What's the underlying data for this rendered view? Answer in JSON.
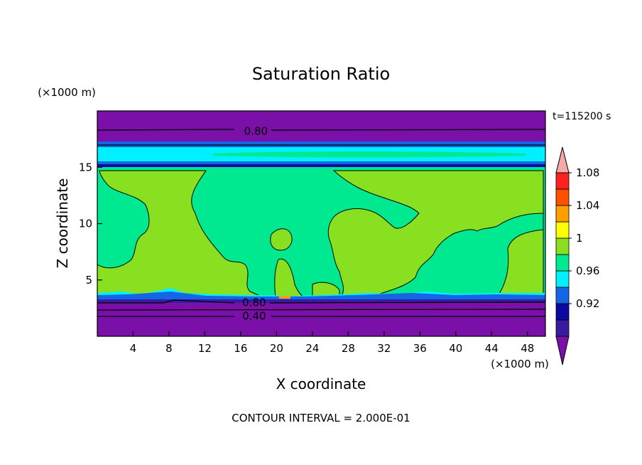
{
  "chart_data": {
    "type": "contour",
    "title": "Saturation Ratio",
    "xlabel": "X coordinate",
    "ylabel": "Z coordinate",
    "x_unit": "(×1000 m)",
    "y_unit": "(×1000 m)",
    "time_label": "t=115200 s",
    "footer": "CONTOUR INTERVAL = 2.000E-01",
    "xlim": [
      0,
      50
    ],
    "ylim": [
      0,
      20
    ],
    "x_ticks": [
      4,
      8,
      12,
      16,
      20,
      24,
      28,
      32,
      36,
      40,
      44,
      48
    ],
    "y_ticks": [
      5,
      10,
      15
    ],
    "contour_labels": [
      {
        "text": "0.80",
        "x": 17.7,
        "z": 18.2
      },
      {
        "text": "0.80",
        "x": 17.5,
        "z": 3.0
      },
      {
        "text": "0.40",
        "x": 17.5,
        "z": 1.8
      }
    ],
    "colorbar": {
      "levels": [
        0.92,
        0.96,
        1,
        1.04,
        1.08
      ],
      "tick_labels": [
        "0.92",
        "0.96",
        "1",
        "1.04",
        "1.08"
      ],
      "colors": [
        "#7a10a8",
        "#3a1aa0",
        "#0a0aa0",
        "#1466e6",
        "#00f0ff",
        "#00e890",
        "#88e020",
        "#ffff00",
        "#ffa000",
        "#ff5000",
        "#ff2020",
        "#f4a8a8"
      ]
    },
    "bands": {
      "dry_top": "#7a10a8",
      "dry_bottom": "#7a10a8",
      "moist": "#00e890",
      "saturated": "#88e020",
      "cyan": "#00f0ff",
      "blue": "#1466e6"
    }
  }
}
